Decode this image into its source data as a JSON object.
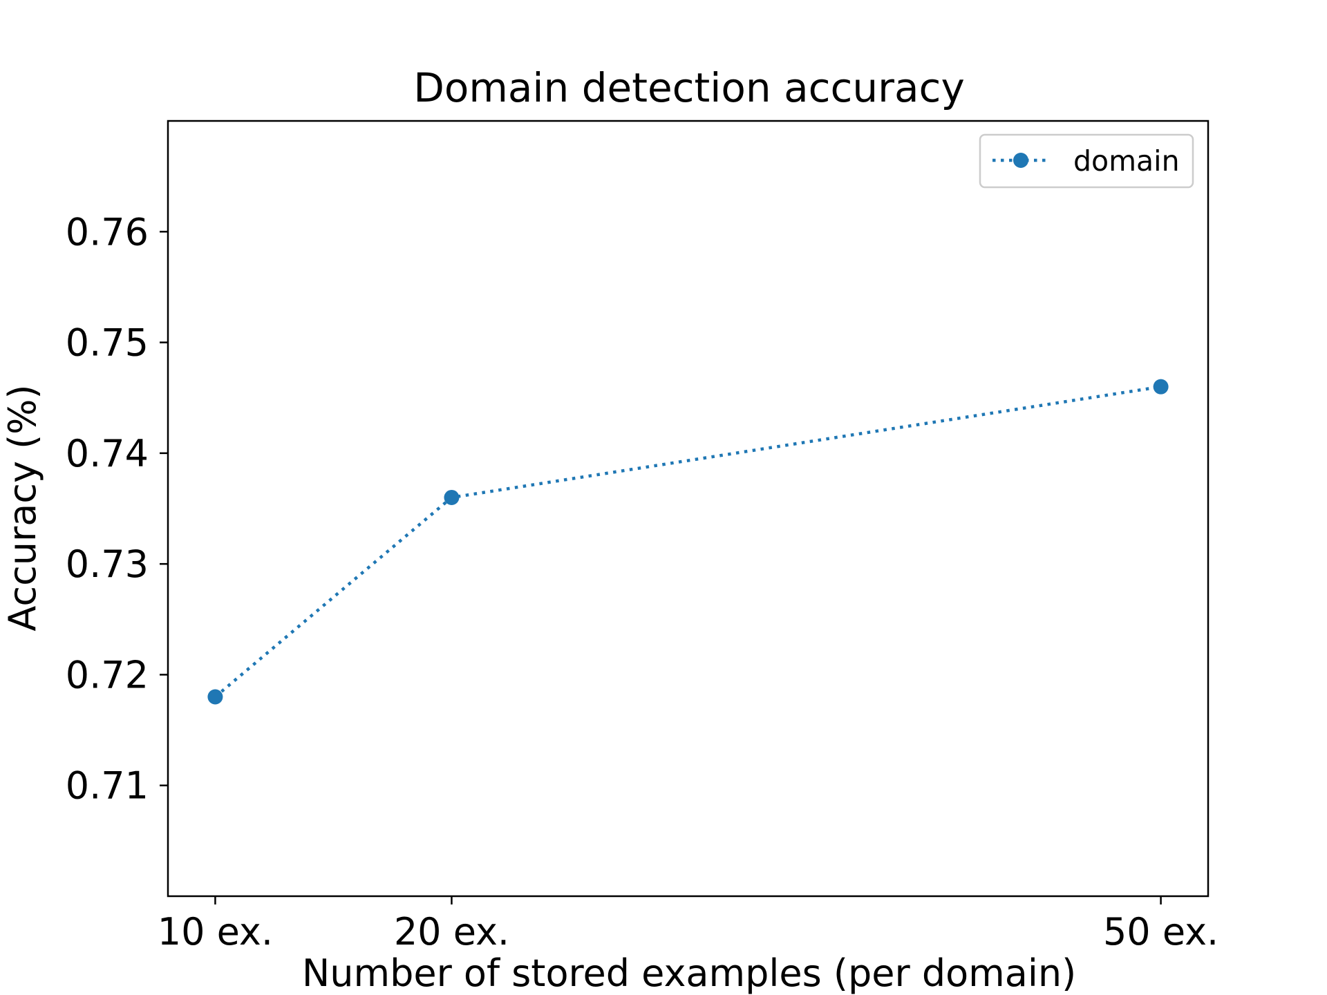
{
  "chart_data": {
    "type": "line",
    "title": "Domain detection accuracy",
    "xlabel": "Number of stored examples (per domain)",
    "ylabel": "Accuracy (%)",
    "x": [
      10,
      20,
      50
    ],
    "x_tick_labels": [
      "10 ex.",
      "20 ex.",
      "50 ex."
    ],
    "xlim": [
      8,
      52
    ],
    "ylim": [
      0.7,
      0.77
    ],
    "y_ticks": [
      0.71,
      0.72,
      0.73,
      0.74,
      0.75,
      0.76
    ],
    "y_tick_labels": [
      "0.71",
      "0.72",
      "0.73",
      "0.74",
      "0.75",
      "0.76"
    ],
    "series": [
      {
        "name": "domain",
        "values": [
          0.718,
          0.736,
          0.746
        ],
        "color": "#1f77b4",
        "line_style": "dotted",
        "marker": "circle"
      }
    ],
    "legend": {
      "position": "upper-right",
      "entries": [
        "domain"
      ]
    },
    "grid": false
  }
}
